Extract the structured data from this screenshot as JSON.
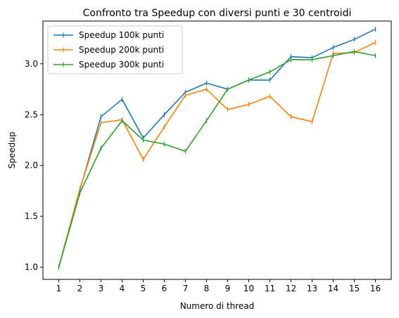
{
  "chart_data": {
    "type": "line",
    "title": "Confronto tra Speedup con diversi punti e 30 centroidi",
    "xlabel": "Numero di thread",
    "ylabel": "Speedup",
    "x": [
      1,
      2,
      3,
      4,
      5,
      6,
      7,
      8,
      9,
      10,
      11,
      12,
      13,
      14,
      15,
      16
    ],
    "xlim": [
      0.25,
      16.75
    ],
    "ylim": [
      0.88,
      3.42
    ],
    "x_ticks": [
      "1",
      "2",
      "3",
      "4",
      "5",
      "6",
      "7",
      "8",
      "9",
      "10",
      "11",
      "12",
      "13",
      "14",
      "15",
      "16"
    ],
    "y_ticks": [
      {
        "value": 1.0,
        "label": "1.0"
      },
      {
        "value": 1.5,
        "label": "1.5"
      },
      {
        "value": 2.0,
        "label": "2.0"
      },
      {
        "value": 2.5,
        "label": "2.5"
      },
      {
        "value": 3.0,
        "label": "3.0"
      }
    ],
    "grid": false,
    "legend_position": "top-left",
    "series": [
      {
        "name": "Speedup 100k punti",
        "color": "#1f77b4",
        "values": [
          1.0,
          1.76,
          2.48,
          2.65,
          2.27,
          2.5,
          2.72,
          2.81,
          2.75,
          2.84,
          2.84,
          3.07,
          3.06,
          3.16,
          3.24,
          3.34
        ]
      },
      {
        "name": "Speedup 200k punti",
        "color": "#ff7f0e",
        "values": [
          1.0,
          1.77,
          2.42,
          2.45,
          2.06,
          2.38,
          2.69,
          2.75,
          2.55,
          2.6,
          2.68,
          2.48,
          2.43,
          3.1,
          3.11,
          3.21
        ]
      },
      {
        "name": "Speedup 300k punti",
        "color": "#2ca02c",
        "values": [
          1.0,
          1.73,
          2.17,
          2.44,
          2.25,
          2.21,
          2.14,
          2.44,
          2.75,
          2.84,
          2.92,
          3.04,
          3.04,
          3.08,
          3.12,
          3.08
        ]
      }
    ]
  }
}
